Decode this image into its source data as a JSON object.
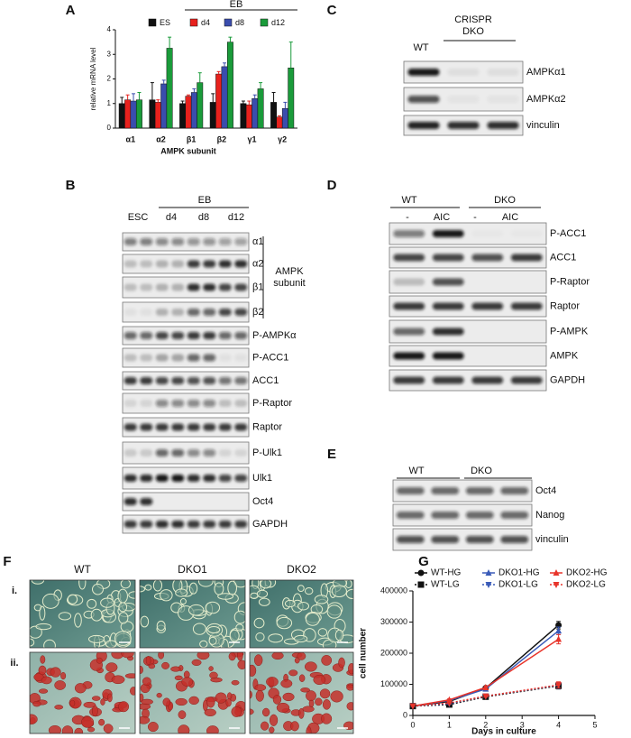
{
  "panel_letters": [
    "A",
    "B",
    "C",
    "D",
    "E",
    "F",
    "G"
  ],
  "chart_data": [
    {
      "type": "bar",
      "categories": [
        "α1",
        "α2",
        "β1",
        "β2",
        "γ1",
        "γ2"
      ],
      "group_label": "EB",
      "y_label": "relative mRNA level",
      "x_label": "AMPK subunit",
      "ylim": [
        0,
        4
      ],
      "yticks": [
        0,
        1,
        2,
        3,
        4
      ],
      "series": [
        {
          "name": "ES",
          "color": "#111111",
          "values": [
            1.0,
            1.15,
            1.0,
            1.05,
            1.0,
            1.05
          ],
          "errors": [
            0.25,
            0.7,
            0.1,
            0.35,
            0.1,
            0.4
          ]
        },
        {
          "name": "d4",
          "color": "#e8211d",
          "values": [
            1.15,
            1.05,
            1.3,
            2.2,
            0.95,
            0.45
          ],
          "errors": [
            0.2,
            0.1,
            0.05,
            0.1,
            0.15,
            0.05
          ]
        },
        {
          "name": "d8",
          "color": "#3a4dad",
          "values": [
            1.1,
            1.8,
            1.45,
            2.5,
            1.2,
            0.8
          ],
          "errors": [
            0.3,
            0.15,
            0.15,
            0.15,
            0.15,
            0.25
          ]
        },
        {
          "name": "d12",
          "color": "#1a9b3a",
          "values": [
            1.15,
            3.25,
            1.85,
            3.5,
            1.6,
            2.45
          ],
          "errors": [
            0.3,
            0.45,
            0.4,
            0.2,
            0.25,
            1.05
          ]
        }
      ]
    },
    {
      "type": "line",
      "x": [
        0,
        1,
        2,
        4
      ],
      "y_label": "cell number",
      "x_label": "Days in culture",
      "xlim": [
        0,
        5
      ],
      "xticks": [
        0,
        1,
        2,
        3,
        4,
        5
      ],
      "ylim": [
        0,
        400000
      ],
      "yticks": [
        0,
        100000,
        200000,
        300000,
        400000
      ],
      "series": [
        {
          "name": "WT-HG",
          "color": "#111111",
          "marker": "circle",
          "dash": "solid",
          "values": [
            30000,
            45000,
            88000,
            290000
          ],
          "errors": [
            0,
            3000,
            4000,
            12000
          ]
        },
        {
          "name": "DKO1-HG",
          "color": "#3a5bb8",
          "marker": "triangle",
          "dash": "solid",
          "values": [
            30000,
            48000,
            85000,
            272000
          ],
          "errors": [
            0,
            3000,
            4000,
            12000
          ]
        },
        {
          "name": "DKO2-HG",
          "color": "#e8342a",
          "marker": "triangle",
          "dash": "solid",
          "values": [
            30000,
            50000,
            90000,
            245000
          ],
          "errors": [
            0,
            3000,
            4000,
            15000
          ]
        },
        {
          "name": "WT-LG",
          "color": "#111111",
          "marker": "square",
          "dash": "dotted",
          "values": [
            30000,
            35000,
            60000,
            95000
          ],
          "errors": [
            0,
            2000,
            3000,
            10000
          ]
        },
        {
          "name": "DKO1-LG",
          "color": "#3a5bb8",
          "marker": "triangle-down",
          "dash": "dotted",
          "values": [
            30000,
            38000,
            62000,
            97000
          ],
          "errors": [
            0,
            2000,
            3000,
            10000
          ]
        },
        {
          "name": "DKO2-LG",
          "color": "#e8342a",
          "marker": "triangle-down",
          "dash": "dotted",
          "values": [
            30000,
            40000,
            62000,
            98000
          ],
          "errors": [
            0,
            2000,
            3000,
            10000
          ]
        }
      ]
    }
  ],
  "blots": {
    "B": {
      "group_label": "EB",
      "lanes": [
        "ESC",
        "d4",
        "d8",
        "d12"
      ],
      "bracket_label": "AMPK subunit",
      "rows": [
        "α1",
        "α2",
        "β1",
        "β2",
        "P-AMPKα",
        "P-ACC1",
        "ACC1",
        "P-Raptor",
        "Raptor",
        "P-Ulk1",
        "Ulk1",
        "Oct4",
        "GAPDH"
      ]
    },
    "C": {
      "groups": [
        "WT",
        "CRISPR DKO"
      ],
      "rows": [
        "AMPKα1",
        "AMPKα2",
        "vinculin"
      ]
    },
    "D": {
      "groups": [
        "WT",
        "DKO"
      ],
      "lanes": [
        "-",
        "AIC",
        "-",
        "AIC"
      ],
      "rows": [
        "P-ACC1",
        "ACC1",
        "P-Raptor",
        "Raptor",
        "P-AMPK",
        "AMPK",
        "GAPDH"
      ]
    },
    "E": {
      "groups": [
        "WT",
        "DKO"
      ],
      "rows": [
        "Oct4",
        "Nanog",
        "vinculin"
      ]
    }
  },
  "micrographs": {
    "columns": [
      "WT",
      "DKO1",
      "DKO2"
    ],
    "rows": [
      "i.",
      "ii."
    ]
  }
}
